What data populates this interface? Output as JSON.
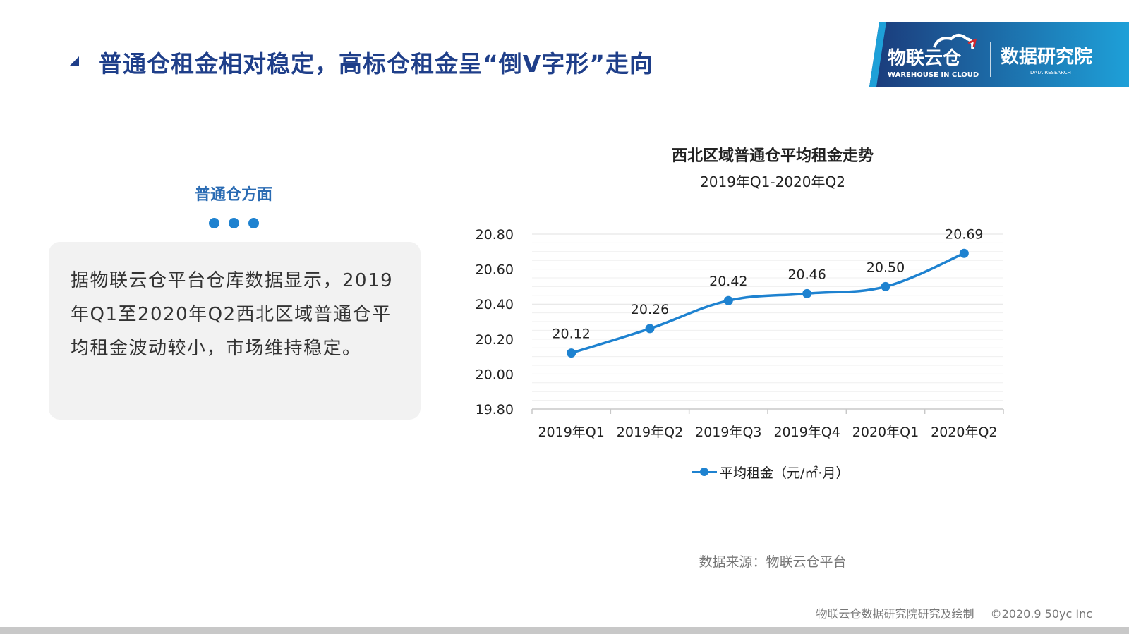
{
  "header": {
    "title": "普通仓租金相对稳定，高标仓租金呈“倒V字形”走向"
  },
  "logo": {
    "brand_cn": "物联云仓",
    "brand_en": "WAREHOUSE IN CLOUD",
    "institute_cn": "数据研究院",
    "institute_en": "DATA RESEARCH",
    "colors": {
      "dark": "#1b3a7a",
      "light": "#1ea0d8",
      "accent": "#d0282e"
    }
  },
  "left_panel": {
    "heading": "普通仓方面",
    "body": "据物联云仓平台仓库数据显示，2019年Q1至2020年Q2西北区域普通仓平均租金波动较小，市场维持稳定。"
  },
  "chart_data": {
    "type": "line",
    "title": "西北区域普通仓平均租金走势",
    "subtitle": "2019年Q1-2020年Q2",
    "categories": [
      "2019年Q1",
      "2019年Q2",
      "2019年Q3",
      "2019年Q4",
      "2020年Q1",
      "2020年Q2"
    ],
    "series": [
      {
        "name": "平均租金（元/㎡·月）",
        "values": [
          20.12,
          20.26,
          20.42,
          20.46,
          20.5,
          20.69
        ],
        "color": "#1e82d0"
      }
    ],
    "y_ticks": [
      "20.80",
      "20.60",
      "20.40",
      "20.20",
      "20.00",
      "19.80"
    ],
    "ylim": [
      19.8,
      20.8
    ],
    "data_labels": [
      "20.12",
      "20.26",
      "20.42",
      "20.46",
      "20.50",
      "20.69"
    ],
    "grid": true,
    "legend_position": "bottom"
  },
  "source": "数据来源：物联云仓平台",
  "footer": {
    "credit": "物联云仓数据研究院研究及绘制",
    "copyright": "©2020.9 50yc Inc"
  }
}
